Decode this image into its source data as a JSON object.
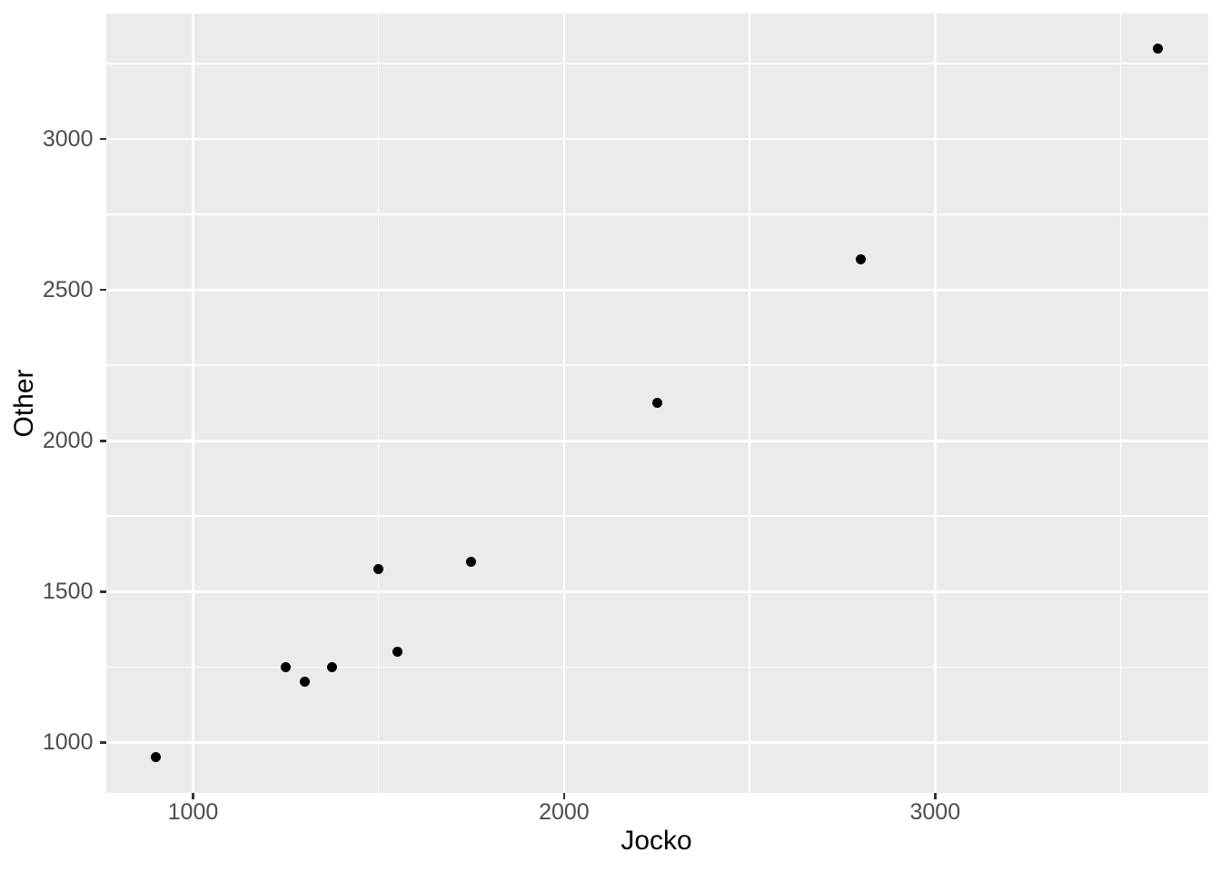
{
  "chart_data": {
    "type": "scatter",
    "title": "",
    "xlabel": "Jocko",
    "ylabel": "Other",
    "points": [
      {
        "x": 900,
        "y": 950
      },
      {
        "x": 1250,
        "y": 1250
      },
      {
        "x": 1300,
        "y": 1200
      },
      {
        "x": 1375,
        "y": 1250
      },
      {
        "x": 1500,
        "y": 1575
      },
      {
        "x": 1550,
        "y": 1300
      },
      {
        "x": 1750,
        "y": 1600
      },
      {
        "x": 2250,
        "y": 2125
      },
      {
        "x": 2800,
        "y": 2600
      },
      {
        "x": 3600,
        "y": 3300
      }
    ],
    "xlim": [
      765,
      3735
    ],
    "ylim": [
      832.5,
      3417.5
    ],
    "x_major_ticks": [
      1000,
      2000,
      3000
    ],
    "y_major_ticks": [
      1000,
      1500,
      2000,
      2500,
      3000
    ],
    "x_minor_gridlines": [
      1500,
      2500,
      3500
    ],
    "y_minor_gridlines": [
      1250,
      1750,
      2250,
      2750,
      3250
    ],
    "grid": "major-and-minor",
    "legend_position": "none",
    "style": {
      "panel_bg": "#EBEBEB",
      "grid_color": "#FFFFFF",
      "point_color": "#000000",
      "tick_mark_color": "#333333",
      "tick_label_color": "#4D4D4D",
      "axis_title_color": "#000000"
    }
  }
}
